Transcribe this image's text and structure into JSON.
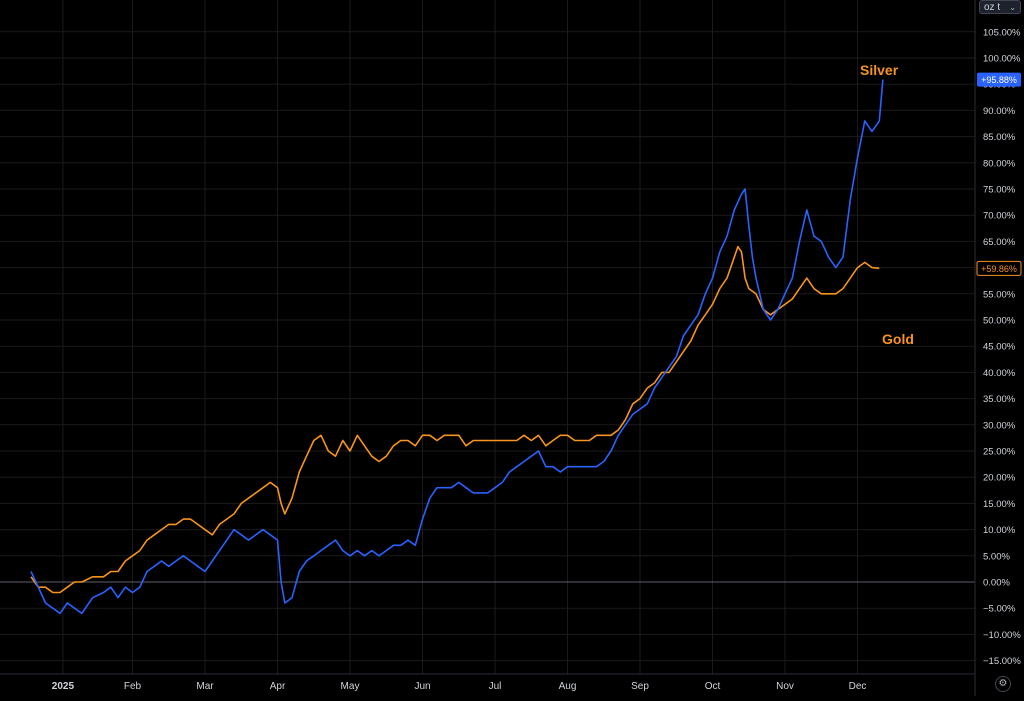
{
  "unit_selector": {
    "label": "oz t",
    "icon": "chevron-down-icon"
  },
  "settings_button": {
    "icon": "gear-icon"
  },
  "colors": {
    "background": "#000000",
    "silver": "#2962ff",
    "gold": "#f7941d",
    "grid": "#1b1b1b",
    "axis_text": "#d1d4dc"
  },
  "chart_data": {
    "type": "line",
    "title": "",
    "xlabel": "",
    "ylabel": "",
    "ylim": [
      -17.5,
      110
    ],
    "y_ticks": [
      -15,
      -10,
      -5,
      0,
      5,
      10,
      15,
      20,
      25,
      30,
      35,
      40,
      45,
      50,
      55,
      60,
      65,
      70,
      75,
      80,
      85,
      90,
      95,
      100,
      105
    ],
    "y_tick_labels": [
      "−15.00%",
      "−10.00%",
      "−5.00%",
      "0.00%",
      "5.00%",
      "10.00%",
      "15.00%",
      "20.00%",
      "25.00%",
      "30.00%",
      "35.00%",
      "40.00%",
      "45.00%",
      "50.00%",
      "55.00%",
      "60.00%",
      "65.00%",
      "70.00%",
      "75.00%",
      "80.00%",
      "85.00%",
      "90.00%",
      "95.00%",
      "100.00%",
      "105.00%"
    ],
    "x_ticks": [
      {
        "label": "2025",
        "t": 0.04
      },
      {
        "label": "Feb",
        "t": 1.0
      },
      {
        "label": "Mar",
        "t": 2.0
      },
      {
        "label": "Apr",
        "t": 3.0
      },
      {
        "label": "May",
        "t": 4.0
      },
      {
        "label": "Jun",
        "t": 5.0
      },
      {
        "label": "Jul",
        "t": 6.0
      },
      {
        "label": "Aug",
        "t": 7.0
      },
      {
        "label": "Sep",
        "t": 8.0
      },
      {
        "label": "Oct",
        "t": 9.0
      },
      {
        "label": "Nov",
        "t": 10.0
      },
      {
        "label": "Dec",
        "t": 11.0
      }
    ],
    "x_range": [
      -0.4,
      11.25
    ],
    "grid": true,
    "zero_line": true,
    "series": [
      {
        "name": "Silver",
        "last_value_label": "+95.88%",
        "points": [
          [
            -0.4,
            2
          ],
          [
            -0.3,
            -1
          ],
          [
            -0.2,
            -4
          ],
          [
            -0.1,
            -5
          ],
          [
            0.0,
            -6
          ],
          [
            0.1,
            -4
          ],
          [
            0.2,
            -5
          ],
          [
            0.3,
            -6
          ],
          [
            0.45,
            -3
          ],
          [
            0.6,
            -2
          ],
          [
            0.7,
            -1
          ],
          [
            0.8,
            -3
          ],
          [
            0.9,
            -1
          ],
          [
            1.0,
            -2
          ],
          [
            1.1,
            -1
          ],
          [
            1.2,
            2
          ],
          [
            1.3,
            3
          ],
          [
            1.4,
            4
          ],
          [
            1.5,
            3
          ],
          [
            1.6,
            4
          ],
          [
            1.7,
            5
          ],
          [
            1.8,
            4
          ],
          [
            1.9,
            3
          ],
          [
            2.0,
            2
          ],
          [
            2.1,
            4
          ],
          [
            2.2,
            6
          ],
          [
            2.3,
            8
          ],
          [
            2.4,
            10
          ],
          [
            2.5,
            9
          ],
          [
            2.6,
            8
          ],
          [
            2.7,
            9
          ],
          [
            2.8,
            10
          ],
          [
            2.9,
            9
          ],
          [
            3.0,
            8
          ],
          [
            3.05,
            0
          ],
          [
            3.1,
            -4
          ],
          [
            3.2,
            -3
          ],
          [
            3.3,
            2
          ],
          [
            3.4,
            4
          ],
          [
            3.5,
            5
          ],
          [
            3.6,
            6
          ],
          [
            3.7,
            7
          ],
          [
            3.8,
            8
          ],
          [
            3.9,
            6
          ],
          [
            4.0,
            5
          ],
          [
            4.1,
            6
          ],
          [
            4.2,
            5
          ],
          [
            4.3,
            6
          ],
          [
            4.4,
            5
          ],
          [
            4.5,
            6
          ],
          [
            4.6,
            7
          ],
          [
            4.7,
            7
          ],
          [
            4.8,
            8
          ],
          [
            4.9,
            7
          ],
          [
            5.0,
            12
          ],
          [
            5.1,
            16
          ],
          [
            5.2,
            18
          ],
          [
            5.3,
            18
          ],
          [
            5.4,
            18
          ],
          [
            5.5,
            19
          ],
          [
            5.6,
            18
          ],
          [
            5.7,
            17
          ],
          [
            5.8,
            17
          ],
          [
            5.9,
            17
          ],
          [
            6.0,
            18
          ],
          [
            6.1,
            19
          ],
          [
            6.2,
            21
          ],
          [
            6.3,
            22
          ],
          [
            6.4,
            23
          ],
          [
            6.5,
            24
          ],
          [
            6.6,
            25
          ],
          [
            6.7,
            22
          ],
          [
            6.8,
            22
          ],
          [
            6.9,
            21
          ],
          [
            7.0,
            22
          ],
          [
            7.1,
            22
          ],
          [
            7.2,
            22
          ],
          [
            7.3,
            22
          ],
          [
            7.4,
            22
          ],
          [
            7.5,
            23
          ],
          [
            7.6,
            25
          ],
          [
            7.7,
            28
          ],
          [
            7.8,
            30
          ],
          [
            7.9,
            32
          ],
          [
            8.0,
            33
          ],
          [
            8.1,
            34
          ],
          [
            8.2,
            37
          ],
          [
            8.3,
            39
          ],
          [
            8.4,
            41
          ],
          [
            8.5,
            43
          ],
          [
            8.6,
            47
          ],
          [
            8.7,
            49
          ],
          [
            8.8,
            51
          ],
          [
            8.9,
            55
          ],
          [
            9.0,
            58
          ],
          [
            9.1,
            63
          ],
          [
            9.2,
            66
          ],
          [
            9.3,
            71
          ],
          [
            9.4,
            74
          ],
          [
            9.45,
            75
          ],
          [
            9.5,
            68
          ],
          [
            9.55,
            62
          ],
          [
            9.6,
            58
          ],
          [
            9.7,
            52
          ],
          [
            9.8,
            50
          ],
          [
            9.9,
            52
          ],
          [
            10.0,
            55
          ],
          [
            10.1,
            58
          ],
          [
            10.2,
            65
          ],
          [
            10.3,
            71
          ],
          [
            10.4,
            66
          ],
          [
            10.5,
            65
          ],
          [
            10.6,
            62
          ],
          [
            10.7,
            60
          ],
          [
            10.8,
            62
          ],
          [
            10.9,
            73
          ],
          [
            11.0,
            81
          ],
          [
            11.1,
            88
          ],
          [
            11.2,
            86
          ],
          [
            11.3,
            88
          ],
          [
            11.35,
            95.88
          ]
        ]
      },
      {
        "name": "Gold",
        "last_value_label": "+59.86%",
        "points": [
          [
            -0.4,
            1
          ],
          [
            -0.3,
            -1
          ],
          [
            -0.2,
            -1
          ],
          [
            -0.1,
            -2
          ],
          [
            0.0,
            -2
          ],
          [
            0.1,
            -1
          ],
          [
            0.2,
            0
          ],
          [
            0.3,
            0
          ],
          [
            0.45,
            1
          ],
          [
            0.6,
            1
          ],
          [
            0.7,
            2
          ],
          [
            0.8,
            2
          ],
          [
            0.9,
            4
          ],
          [
            1.0,
            5
          ],
          [
            1.1,
            6
          ],
          [
            1.2,
            8
          ],
          [
            1.3,
            9
          ],
          [
            1.4,
            10
          ],
          [
            1.5,
            11
          ],
          [
            1.6,
            11
          ],
          [
            1.7,
            12
          ],
          [
            1.8,
            12
          ],
          [
            1.9,
            11
          ],
          [
            2.0,
            10
          ],
          [
            2.1,
            9
          ],
          [
            2.2,
            11
          ],
          [
            2.3,
            12
          ],
          [
            2.4,
            13
          ],
          [
            2.5,
            15
          ],
          [
            2.6,
            16
          ],
          [
            2.7,
            17
          ],
          [
            2.8,
            18
          ],
          [
            2.9,
            19
          ],
          [
            3.0,
            18
          ],
          [
            3.05,
            15
          ],
          [
            3.1,
            13
          ],
          [
            3.2,
            16
          ],
          [
            3.3,
            21
          ],
          [
            3.4,
            24
          ],
          [
            3.5,
            27
          ],
          [
            3.6,
            28
          ],
          [
            3.7,
            25
          ],
          [
            3.8,
            24
          ],
          [
            3.9,
            27
          ],
          [
            4.0,
            25
          ],
          [
            4.1,
            28
          ],
          [
            4.2,
            26
          ],
          [
            4.3,
            24
          ],
          [
            4.4,
            23
          ],
          [
            4.5,
            24
          ],
          [
            4.6,
            26
          ],
          [
            4.7,
            27
          ],
          [
            4.8,
            27
          ],
          [
            4.9,
            26
          ],
          [
            5.0,
            28
          ],
          [
            5.1,
            28
          ],
          [
            5.2,
            27
          ],
          [
            5.3,
            28
          ],
          [
            5.4,
            28
          ],
          [
            5.5,
            28
          ],
          [
            5.6,
            26
          ],
          [
            5.7,
            27
          ],
          [
            5.8,
            27
          ],
          [
            5.9,
            27
          ],
          [
            6.0,
            27
          ],
          [
            6.1,
            27
          ],
          [
            6.2,
            27
          ],
          [
            6.3,
            27
          ],
          [
            6.4,
            28
          ],
          [
            6.5,
            27
          ],
          [
            6.6,
            28
          ],
          [
            6.7,
            26
          ],
          [
            6.8,
            27
          ],
          [
            6.9,
            28
          ],
          [
            7.0,
            28
          ],
          [
            7.1,
            27
          ],
          [
            7.2,
            27
          ],
          [
            7.3,
            27
          ],
          [
            7.4,
            28
          ],
          [
            7.5,
            28
          ],
          [
            7.6,
            28
          ],
          [
            7.7,
            29
          ],
          [
            7.8,
            31
          ],
          [
            7.9,
            34
          ],
          [
            8.0,
            35
          ],
          [
            8.1,
            37
          ],
          [
            8.2,
            38
          ],
          [
            8.3,
            40
          ],
          [
            8.4,
            40
          ],
          [
            8.5,
            42
          ],
          [
            8.6,
            44
          ],
          [
            8.7,
            46
          ],
          [
            8.8,
            49
          ],
          [
            8.9,
            51
          ],
          [
            9.0,
            53
          ],
          [
            9.1,
            56
          ],
          [
            9.2,
            58
          ],
          [
            9.3,
            62
          ],
          [
            9.35,
            64
          ],
          [
            9.4,
            63
          ],
          [
            9.45,
            58
          ],
          [
            9.5,
            56
          ],
          [
            9.6,
            55
          ],
          [
            9.7,
            52
          ],
          [
            9.8,
            51
          ],
          [
            9.9,
            52
          ],
          [
            10.0,
            53
          ],
          [
            10.1,
            54
          ],
          [
            10.2,
            56
          ],
          [
            10.3,
            58
          ],
          [
            10.4,
            56
          ],
          [
            10.5,
            55
          ],
          [
            10.6,
            55
          ],
          [
            10.7,
            55
          ],
          [
            10.8,
            56
          ],
          [
            10.9,
            58
          ],
          [
            11.0,
            60
          ],
          [
            11.1,
            61
          ],
          [
            11.2,
            60
          ],
          [
            11.3,
            59.86
          ]
        ]
      }
    ],
    "annotations": [
      {
        "text": "Silver",
        "series": "Silver"
      },
      {
        "text": "Gold",
        "series": "Gold"
      }
    ]
  }
}
